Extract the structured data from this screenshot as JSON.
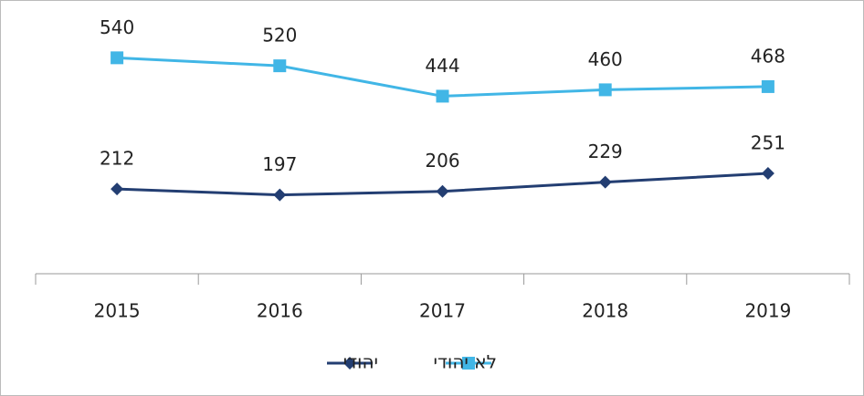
{
  "chart_data": {
    "type": "line",
    "categories": [
      "2015",
      "2016",
      "2017",
      "2018",
      "2019"
    ],
    "series": [
      {
        "name": "לא יהודי",
        "color": "#41b6e6",
        "marker": "square",
        "values": [
          540,
          520,
          444,
          460,
          468
        ]
      },
      {
        "name": "יהודי",
        "color": "#233e72",
        "marker": "diamond",
        "values": [
          212,
          197,
          206,
          229,
          251
        ]
      }
    ],
    "ylim": [
      0,
      680
    ],
    "grid": false,
    "legend": "bottom"
  }
}
